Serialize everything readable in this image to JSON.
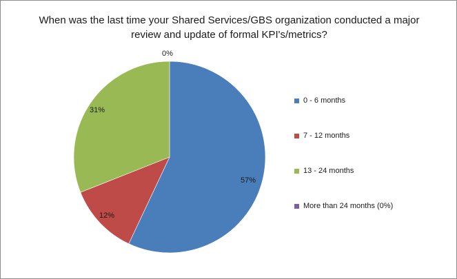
{
  "chart_data": {
    "type": "pie",
    "title": "When was the last time your Shared Services/GBS organization conducted a major review and update of formal KPI's/metrics?",
    "categories": [
      "0 - 6 months",
      "7 - 12 months",
      "13 - 24 months",
      "More than 24 months (0%)"
    ],
    "values": [
      57,
      12,
      31,
      0
    ],
    "data_labels": [
      "57%",
      "12%",
      "31%",
      "0%"
    ],
    "colors": [
      "#4a7ebb",
      "#be4b48",
      "#98b954",
      "#7d60a0"
    ],
    "legend_position": "right",
    "start_angle": "top",
    "direction": "clockwise"
  }
}
